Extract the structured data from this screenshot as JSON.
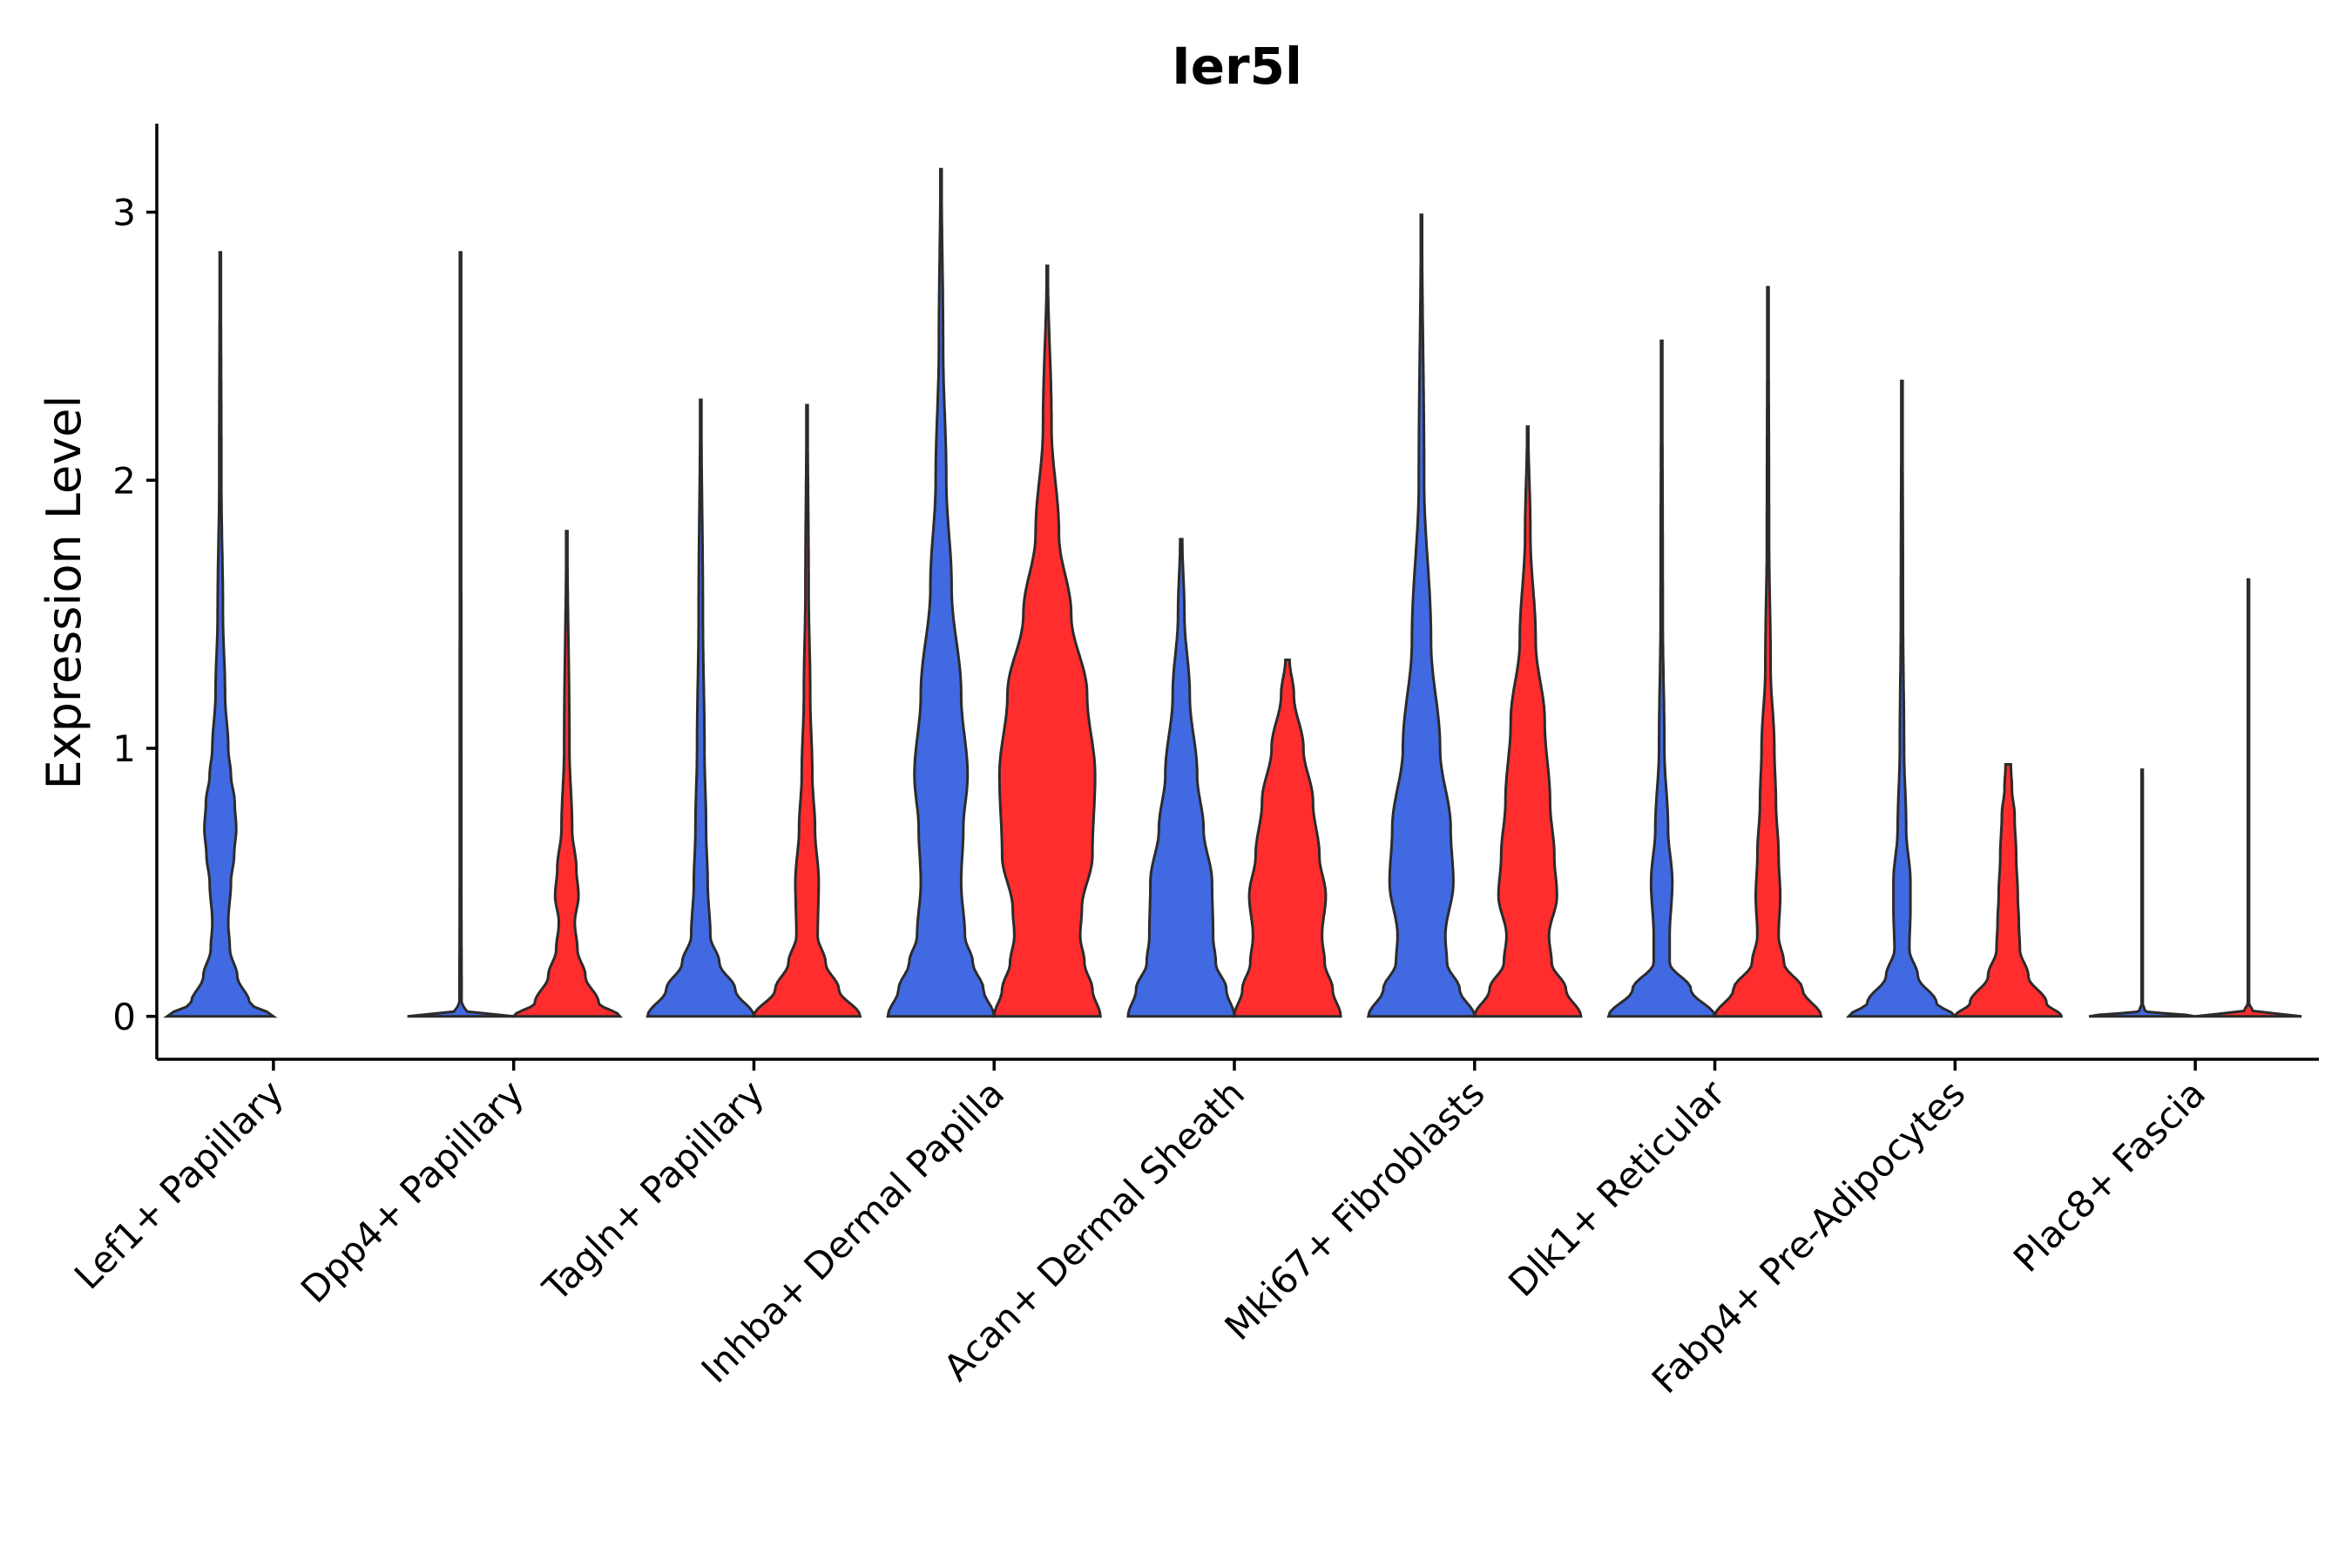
{
  "chart_data": {
    "type": "violin",
    "title": "Ier5l",
    "xlabel": "",
    "ylabel": "Expression Level",
    "ylim": [
      -0.16,
      3.33
    ],
    "yticks": [
      0,
      1,
      2,
      3
    ],
    "grid": false,
    "series_colors": {
      "blue": "#4169E1",
      "red": "#FF2D2D"
    },
    "categories": [
      "Lef1+ Papillary",
      "Dpp4+ Papillary",
      "Tagln+ Papillary",
      "Inhba+ Dermal Papilla",
      "Acan+ Dermal Sheath",
      "Mki67+ Fibroblasts",
      "Dlk1+ Reticular",
      "Fabp4+ Pre-Adipocytes",
      "Plac8+ Fascia"
    ],
    "violins": [
      {
        "category": "Lef1+ Papillary",
        "series": "blue",
        "max": 2.85,
        "profile": [
          [
            0,
            1.0
          ],
          [
            0.05,
            0.55
          ],
          [
            0.15,
            0.32
          ],
          [
            0.25,
            0.18
          ],
          [
            0.35,
            0.15
          ],
          [
            0.5,
            0.2
          ],
          [
            0.6,
            0.26
          ],
          [
            0.7,
            0.3
          ],
          [
            0.8,
            0.27
          ],
          [
            0.9,
            0.2
          ],
          [
            1.0,
            0.15
          ],
          [
            1.2,
            0.09
          ],
          [
            1.5,
            0.05
          ],
          [
            2.0,
            0.02
          ],
          [
            2.85,
            0.01
          ]
        ]
      },
      {
        "category": "Dpp4+ Papillary",
        "series": "blue",
        "max": 2.85,
        "profile": [
          [
            0,
            1.0
          ],
          [
            0.02,
            0.1
          ],
          [
            0.05,
            0.02
          ],
          [
            0.5,
            0.015
          ],
          [
            2.85,
            0.01
          ]
        ]
      },
      {
        "category": "Dpp4+ Papillary",
        "series": "red",
        "max": 1.81,
        "profile": [
          [
            0,
            1.0
          ],
          [
            0.05,
            0.6
          ],
          [
            0.15,
            0.35
          ],
          [
            0.25,
            0.2
          ],
          [
            0.35,
            0.15
          ],
          [
            0.45,
            0.22
          ],
          [
            0.55,
            0.18
          ],
          [
            0.7,
            0.1
          ],
          [
            1.0,
            0.05
          ],
          [
            1.81,
            0.01
          ]
        ]
      },
      {
        "category": "Tagln+ Papillary",
        "series": "blue",
        "max": 2.3,
        "profile": [
          [
            0,
            1.0
          ],
          [
            0.1,
            0.65
          ],
          [
            0.2,
            0.35
          ],
          [
            0.3,
            0.18
          ],
          [
            0.5,
            0.13
          ],
          [
            0.7,
            0.1
          ],
          [
            1.0,
            0.07
          ],
          [
            1.5,
            0.04
          ],
          [
            2.3,
            0.01
          ]
        ]
      },
      {
        "category": "Tagln+ Papillary",
        "series": "red",
        "max": 2.28,
        "profile": [
          [
            0,
            1.0
          ],
          [
            0.1,
            0.6
          ],
          [
            0.2,
            0.35
          ],
          [
            0.3,
            0.2
          ],
          [
            0.5,
            0.22
          ],
          [
            0.7,
            0.15
          ],
          [
            0.9,
            0.1
          ],
          [
            1.2,
            0.06
          ],
          [
            1.6,
            0.03
          ],
          [
            2.28,
            0.01
          ]
        ]
      },
      {
        "category": "Inhba+ Dermal Papilla",
        "series": "blue",
        "max": 3.16,
        "profile": [
          [
            0,
            1.0
          ],
          [
            0.1,
            0.8
          ],
          [
            0.2,
            0.6
          ],
          [
            0.3,
            0.45
          ],
          [
            0.5,
            0.38
          ],
          [
            0.7,
            0.42
          ],
          [
            0.9,
            0.5
          ],
          [
            1.2,
            0.38
          ],
          [
            1.6,
            0.2
          ],
          [
            2.0,
            0.1
          ],
          [
            2.5,
            0.04
          ],
          [
            3.16,
            0.01
          ]
        ]
      },
      {
        "category": "Inhba+ Dermal Papilla",
        "series": "red",
        "max": 2.8,
        "profile": [
          [
            0,
            1.0
          ],
          [
            0.1,
            0.85
          ],
          [
            0.2,
            0.7
          ],
          [
            0.3,
            0.62
          ],
          [
            0.4,
            0.65
          ],
          [
            0.6,
            0.85
          ],
          [
            0.9,
            0.9
          ],
          [
            1.2,
            0.75
          ],
          [
            1.5,
            0.45
          ],
          [
            1.8,
            0.22
          ],
          [
            2.2,
            0.08
          ],
          [
            2.8,
            0.01
          ]
        ]
      },
      {
        "category": "Acan+ Dermal Sheath",
        "series": "blue",
        "max": 1.78,
        "profile": [
          [
            0,
            1.0
          ],
          [
            0.1,
            0.85
          ],
          [
            0.2,
            0.65
          ],
          [
            0.3,
            0.6
          ],
          [
            0.5,
            0.58
          ],
          [
            0.7,
            0.42
          ],
          [
            0.9,
            0.3
          ],
          [
            1.2,
            0.16
          ],
          [
            1.5,
            0.06
          ],
          [
            1.78,
            0.02
          ]
        ]
      },
      {
        "category": "Acan+ Dermal Sheath",
        "series": "red",
        "max": 1.33,
        "profile": [
          [
            0,
            1.0
          ],
          [
            0.1,
            0.85
          ],
          [
            0.2,
            0.7
          ],
          [
            0.3,
            0.65
          ],
          [
            0.45,
            0.72
          ],
          [
            0.6,
            0.6
          ],
          [
            0.8,
            0.48
          ],
          [
            1.0,
            0.3
          ],
          [
            1.2,
            0.12
          ],
          [
            1.33,
            0.04
          ]
        ]
      },
      {
        "category": "Mki67+ Fibroblasts",
        "series": "blue",
        "max": 2.99,
        "profile": [
          [
            0,
            1.0
          ],
          [
            0.1,
            0.72
          ],
          [
            0.2,
            0.48
          ],
          [
            0.3,
            0.45
          ],
          [
            0.5,
            0.6
          ],
          [
            0.7,
            0.55
          ],
          [
            1.0,
            0.35
          ],
          [
            1.4,
            0.18
          ],
          [
            2.0,
            0.05
          ],
          [
            2.99,
            0.01
          ]
        ]
      },
      {
        "category": "Mki67+ Fibroblasts",
        "series": "red",
        "max": 2.2,
        "profile": [
          [
            0,
            1.0
          ],
          [
            0.1,
            0.72
          ],
          [
            0.2,
            0.45
          ],
          [
            0.3,
            0.4
          ],
          [
            0.45,
            0.55
          ],
          [
            0.6,
            0.5
          ],
          [
            0.8,
            0.42
          ],
          [
            1.1,
            0.32
          ],
          [
            1.4,
            0.15
          ],
          [
            1.8,
            0.05
          ],
          [
            2.2,
            0.01
          ]
        ]
      },
      {
        "category": "Dlk1+ Reticular",
        "series": "blue",
        "max": 2.52,
        "profile": [
          [
            0,
            1.0
          ],
          [
            0.1,
            0.55
          ],
          [
            0.2,
            0.15
          ],
          [
            0.3,
            0.15
          ],
          [
            0.5,
            0.2
          ],
          [
            0.7,
            0.12
          ],
          [
            1.0,
            0.05
          ],
          [
            1.5,
            0.02
          ],
          [
            2.52,
            0.01
          ]
        ]
      },
      {
        "category": "Dlk1+ Reticular",
        "series": "red",
        "max": 2.72,
        "profile": [
          [
            0,
            1.0
          ],
          [
            0.1,
            0.65
          ],
          [
            0.2,
            0.3
          ],
          [
            0.3,
            0.2
          ],
          [
            0.45,
            0.23
          ],
          [
            0.6,
            0.2
          ],
          [
            0.8,
            0.15
          ],
          [
            1.0,
            0.12
          ],
          [
            1.3,
            0.05
          ],
          [
            1.8,
            0.02
          ],
          [
            2.72,
            0.01
          ]
        ]
      },
      {
        "category": "Fabp4+ Pre-Adipocytes",
        "series": "blue",
        "max": 2.37,
        "profile": [
          [
            0,
            1.0
          ],
          [
            0.05,
            0.65
          ],
          [
            0.15,
            0.3
          ],
          [
            0.25,
            0.14
          ],
          [
            0.4,
            0.16
          ],
          [
            0.5,
            0.16
          ],
          [
            0.7,
            0.08
          ],
          [
            1.0,
            0.04
          ],
          [
            1.5,
            0.02
          ],
          [
            2.37,
            0.01
          ]
        ]
      },
      {
        "category": "Fabp4+ Pre-Adipocytes",
        "series": "red",
        "max": 0.94,
        "profile": [
          [
            0,
            1.0
          ],
          [
            0.05,
            0.72
          ],
          [
            0.15,
            0.38
          ],
          [
            0.25,
            0.22
          ],
          [
            0.35,
            0.2
          ],
          [
            0.45,
            0.18
          ],
          [
            0.6,
            0.15
          ],
          [
            0.75,
            0.12
          ],
          [
            0.85,
            0.07
          ],
          [
            0.94,
            0.05
          ]
        ]
      },
      {
        "category": "Plac8+ Fascia",
        "series": "blue",
        "max": 0.92,
        "profile": [
          [
            0,
            1.0
          ],
          [
            0.02,
            0.05
          ],
          [
            0.05,
            0.01
          ],
          [
            0.92,
            0.01
          ]
        ]
      },
      {
        "category": "Plac8+ Fascia",
        "series": "red",
        "max": 1.63,
        "profile": [
          [
            0,
            1.0
          ],
          [
            0.02,
            0.08
          ],
          [
            0.05,
            0.01
          ],
          [
            1.63,
            0.01
          ]
        ]
      }
    ]
  }
}
